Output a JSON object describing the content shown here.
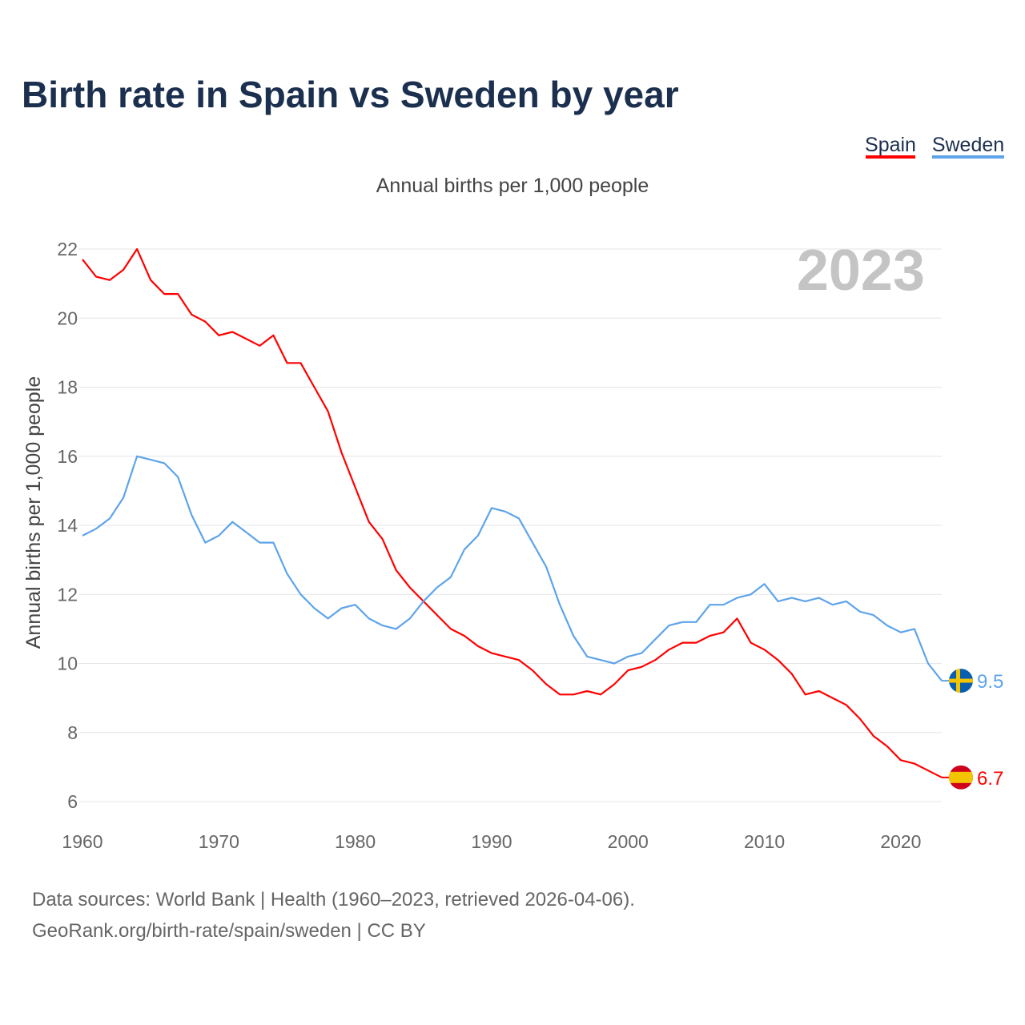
{
  "chart_data": {
    "type": "line",
    "title": "Birth rate in Spain vs Sweden by year",
    "subtitle": "Annual births per 1,000 people",
    "ylabel": "Annual births per 1,000 people",
    "xlabel": "",
    "year_label": "2023",
    "xlim": [
      1960,
      2023
    ],
    "ylim": [
      6,
      22
    ],
    "xticks": [
      1960,
      1970,
      1980,
      1990,
      2000,
      2010,
      2020
    ],
    "yticks": [
      6,
      8,
      10,
      12,
      14,
      16,
      18,
      20,
      22
    ],
    "grid": true,
    "legend_position": "top-right",
    "x_start": 1960,
    "series": [
      {
        "name": "Spain",
        "color": "#ff0000",
        "end_label": "6.7",
        "flag": "spain-flag",
        "values": [
          21.7,
          21.2,
          21.1,
          21.4,
          22.0,
          21.1,
          20.7,
          20.7,
          20.1,
          19.9,
          19.5,
          19.6,
          19.4,
          19.2,
          19.5,
          18.7,
          18.7,
          18.0,
          17.3,
          16.1,
          15.1,
          14.1,
          13.6,
          12.7,
          12.2,
          11.8,
          11.4,
          11.0,
          10.8,
          10.5,
          10.3,
          10.2,
          10.1,
          9.8,
          9.4,
          9.1,
          9.1,
          9.2,
          9.1,
          9.4,
          9.8,
          9.9,
          10.1,
          10.4,
          10.6,
          10.6,
          10.8,
          10.9,
          11.3,
          10.6,
          10.4,
          10.1,
          9.7,
          9.1,
          9.2,
          9.0,
          8.8,
          8.4,
          7.9,
          7.6,
          7.2,
          7.1,
          6.9,
          6.7
        ]
      },
      {
        "name": "Sweden",
        "color": "#5ea4ea",
        "end_label": "9.5",
        "flag": "sweden-flag",
        "values": [
          13.7,
          13.9,
          14.2,
          14.8,
          16.0,
          15.9,
          15.8,
          15.4,
          14.3,
          13.5,
          13.7,
          14.1,
          13.8,
          13.5,
          13.5,
          12.6,
          12.0,
          11.6,
          11.3,
          11.6,
          11.7,
          11.3,
          11.1,
          11.0,
          11.3,
          11.8,
          12.2,
          12.5,
          13.3,
          13.7,
          14.5,
          14.4,
          14.2,
          13.5,
          12.8,
          11.7,
          10.8,
          10.2,
          10.1,
          10.0,
          10.2,
          10.3,
          10.7,
          11.1,
          11.2,
          11.2,
          11.7,
          11.7,
          11.9,
          12.0,
          12.3,
          11.8,
          11.9,
          11.8,
          11.9,
          11.7,
          11.8,
          11.5,
          11.4,
          11.1,
          10.9,
          11.0,
          10.0,
          9.5
        ]
      }
    ]
  },
  "footer": {
    "line1": "Data sources: World Bank | Health (1960–2023, retrieved 2026-04-06).",
    "line2": "GeoRank.org/birth-rate/spain/sweden | CC BY"
  }
}
